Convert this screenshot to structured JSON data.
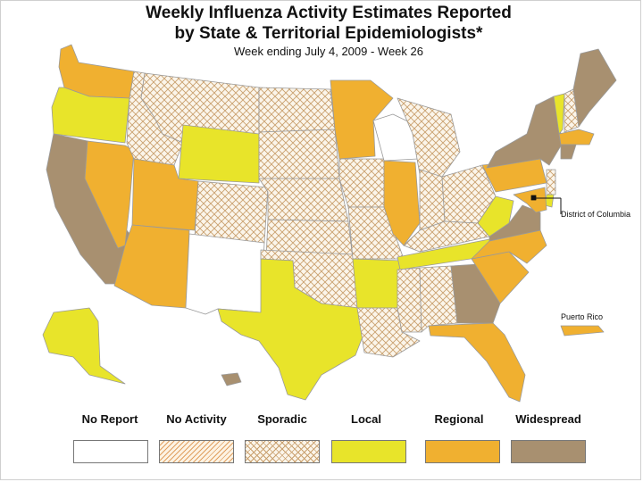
{
  "title": {
    "line1": "Weekly Influenza Activity Estimates Reported",
    "line2": "by State & Territorial Epidemiologists*",
    "subtitle": "Week ending July 4, 2009 - Week 26"
  },
  "labels": {
    "dc": "District of Columbia",
    "pr": "Puerto Rico"
  },
  "colors": {
    "no_report": "#ffffff",
    "local": "#e8e42a",
    "regional": "#f0b030",
    "widespread": "#a89070",
    "hatch_line": "#c9a06e",
    "outline": "#9a9a9a"
  },
  "legend": [
    {
      "label": "No Report",
      "pattern": "none"
    },
    {
      "label": "No Activity",
      "pattern": "diagonal"
    },
    {
      "label": "Sporadic",
      "pattern": "crosshatch"
    },
    {
      "label": "Local",
      "pattern": "local"
    },
    {
      "label": "Regional",
      "pattern": "regional"
    },
    {
      "label": "Widespread",
      "pattern": "widespread"
    }
  ],
  "states": [
    {
      "name": "Washington",
      "level": "Regional"
    },
    {
      "name": "Oregon",
      "level": "Local"
    },
    {
      "name": "California",
      "level": "Widespread"
    },
    {
      "name": "Nevada",
      "level": "Regional"
    },
    {
      "name": "Idaho",
      "level": "Sporadic"
    },
    {
      "name": "Montana",
      "level": "Sporadic"
    },
    {
      "name": "Wyoming",
      "level": "Local"
    },
    {
      "name": "Utah",
      "level": "Regional"
    },
    {
      "name": "Arizona",
      "level": "Regional"
    },
    {
      "name": "Colorado",
      "level": "Sporadic"
    },
    {
      "name": "New Mexico",
      "level": "No Report"
    },
    {
      "name": "North Dakota",
      "level": "Sporadic"
    },
    {
      "name": "South Dakota",
      "level": "Sporadic"
    },
    {
      "name": "Nebraska",
      "level": "Sporadic"
    },
    {
      "name": "Kansas",
      "level": "Sporadic"
    },
    {
      "name": "Oklahoma",
      "level": "Sporadic"
    },
    {
      "name": "Texas",
      "level": "Local"
    },
    {
      "name": "Minnesota",
      "level": "Regional"
    },
    {
      "name": "Iowa",
      "level": "Sporadic"
    },
    {
      "name": "Missouri",
      "level": "Sporadic"
    },
    {
      "name": "Arkansas",
      "level": "Local"
    },
    {
      "name": "Louisiana",
      "level": "Sporadic"
    },
    {
      "name": "Wisconsin",
      "level": "No Report"
    },
    {
      "name": "Illinois",
      "level": "Regional"
    },
    {
      "name": "Michigan",
      "level": "Sporadic"
    },
    {
      "name": "Indiana",
      "level": "Sporadic"
    },
    {
      "name": "Ohio",
      "level": "Sporadic"
    },
    {
      "name": "Kentucky",
      "level": "Sporadic"
    },
    {
      "name": "Tennessee",
      "level": "Local"
    },
    {
      "name": "Mississippi",
      "level": "Sporadic"
    },
    {
      "name": "Alabama",
      "level": "Sporadic"
    },
    {
      "name": "Georgia",
      "level": "Widespread"
    },
    {
      "name": "Florida",
      "level": "Regional"
    },
    {
      "name": "South Carolina",
      "level": "Regional"
    },
    {
      "name": "North Carolina",
      "level": "Regional"
    },
    {
      "name": "Virginia",
      "level": "Widespread"
    },
    {
      "name": "West Virginia",
      "level": "Local"
    },
    {
      "name": "Pennsylvania",
      "level": "Regional"
    },
    {
      "name": "New York",
      "level": "Widespread"
    },
    {
      "name": "Vermont",
      "level": "Local"
    },
    {
      "name": "New Hampshire",
      "level": "Sporadic"
    },
    {
      "name": "Maine",
      "level": "Widespread"
    },
    {
      "name": "Massachusetts",
      "level": "Regional"
    },
    {
      "name": "Connecticut",
      "level": "Widespread"
    },
    {
      "name": "New Jersey",
      "level": "Sporadic"
    },
    {
      "name": "Delaware",
      "level": "Local"
    },
    {
      "name": "Maryland",
      "level": "Regional"
    },
    {
      "name": "District of Columbia",
      "level": "No Report"
    },
    {
      "name": "Alaska",
      "level": "Local"
    },
    {
      "name": "Hawaii",
      "level": "Widespread"
    },
    {
      "name": "Puerto Rico",
      "level": "Regional"
    }
  ]
}
